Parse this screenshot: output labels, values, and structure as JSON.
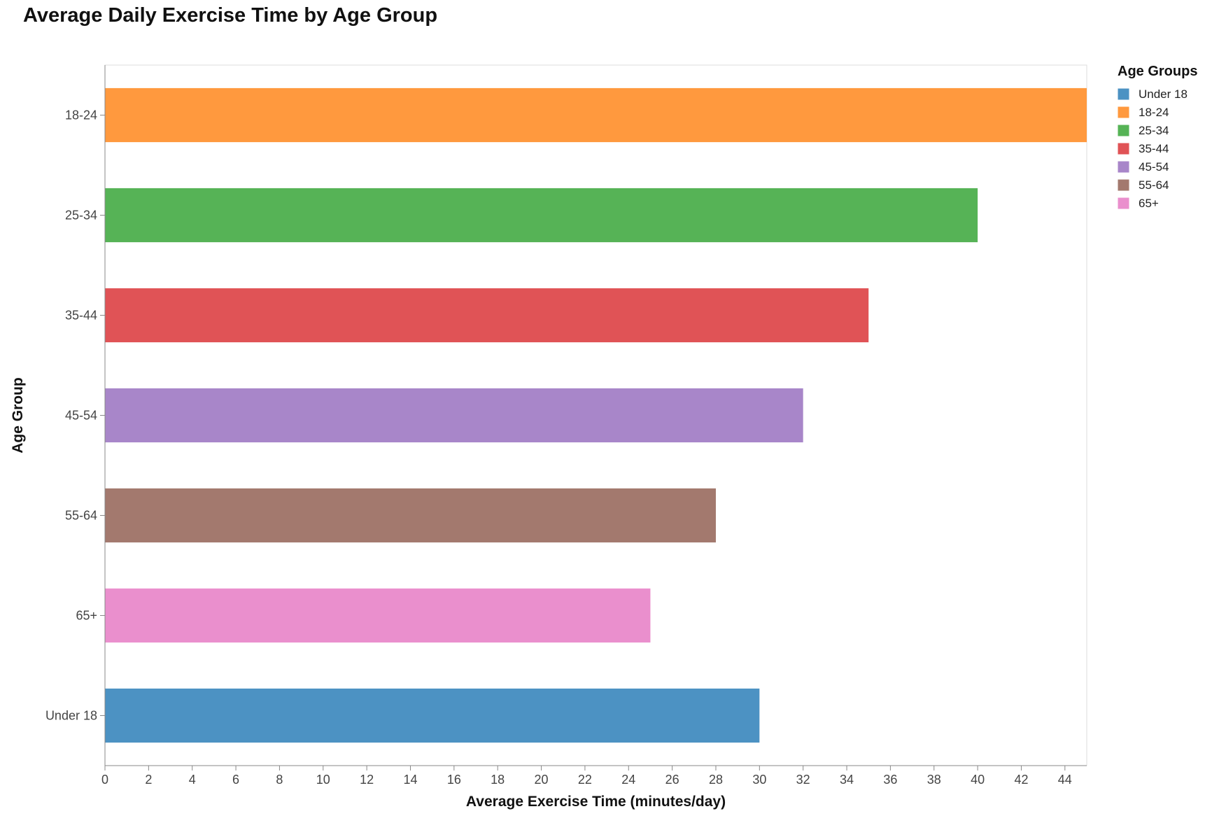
{
  "chart_data": {
    "type": "bar",
    "orientation": "horizontal",
    "title": "Average Daily Exercise Time by Age Group",
    "xlabel": "Average Exercise Time (minutes/day)",
    "ylabel": "Age Group",
    "xlim": [
      0,
      45
    ],
    "x_ticks": [
      0,
      2,
      4,
      6,
      8,
      10,
      12,
      14,
      16,
      18,
      20,
      22,
      24,
      26,
      28,
      30,
      32,
      34,
      36,
      38,
      40,
      42,
      44
    ],
    "grid": false,
    "legend": {
      "title": "Age Groups",
      "placement": "top-right",
      "entries": [
        "Under 18",
        "18-24",
        "25-34",
        "35-44",
        "45-54",
        "55-64",
        "65+"
      ]
    },
    "categories": [
      "18-24",
      "25-34",
      "35-44",
      "45-54",
      "55-64",
      "65+",
      "Under 18"
    ],
    "values": [
      45,
      40,
      35,
      32,
      28,
      25,
      30
    ],
    "colors": {
      "Under 18": "#4c92c3",
      "18-24": "#ff993e",
      "25-34": "#56b356",
      "35-44": "#e05356",
      "45-54": "#a886c9",
      "55-64": "#a3796e",
      "65+": "#ea8fcd"
    }
  }
}
